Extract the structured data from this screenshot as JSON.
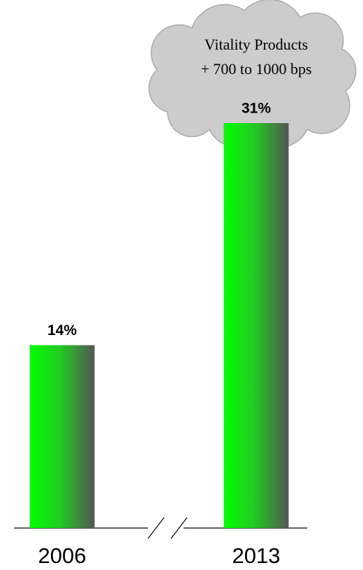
{
  "chart_data": {
    "type": "bar",
    "categories": [
      "2006",
      "2013"
    ],
    "values": [
      14,
      31
    ],
    "value_labels": [
      "14%",
      "31%"
    ],
    "color": "#00ff00",
    "annotation": [
      "Vitality Products",
      "+ 700 to 1000 bps"
    ]
  }
}
